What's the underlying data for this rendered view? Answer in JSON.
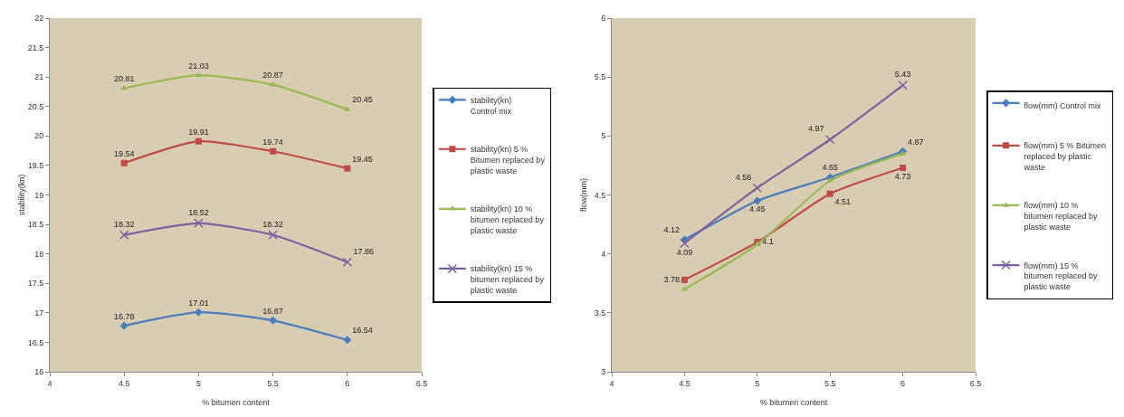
{
  "chart_data": [
    {
      "type": "line",
      "xlabel": "% bitumen content",
      "ylabel": "stability(kn)",
      "x": [
        4.5,
        5,
        5.5,
        6
      ],
      "xlim": [
        4,
        6.5
      ],
      "xticks": [
        4,
        4.5,
        5,
        5.5,
        6,
        6.5
      ],
      "ylim": [
        16,
        22
      ],
      "yticks": [
        16,
        16.5,
        17,
        17.5,
        18,
        18.5,
        19,
        19.5,
        20,
        20.5,
        21,
        21.5,
        22
      ],
      "grid": false,
      "legend": "right",
      "data_labels": true,
      "series": [
        {
          "name": "stability(kn) Control mix",
          "color": "#4a7ebb",
          "marker": "diamond",
          "values": [
            16.78,
            17.01,
            16.87,
            16.54
          ]
        },
        {
          "name": "stability(kn) 5 % Bitumen replaced by plastic waste",
          "color": "#be4b48",
          "marker": "square",
          "values": [
            19.54,
            19.91,
            19.74,
            19.45
          ]
        },
        {
          "name": "stability(kn) 10 % bitumen replaced by plastic waste",
          "color": "#98b954",
          "marker": "triangle",
          "values": [
            20.81,
            21.03,
            20.87,
            20.45
          ]
        },
        {
          "name": "stability(kn) 15 % bitumen replaced by plastic waste",
          "color": "#7d60a0",
          "marker": "cross",
          "values": [
            18.32,
            18.52,
            18.32,
            17.86
          ]
        }
      ]
    },
    {
      "type": "line",
      "xlabel": "% bitumen content",
      "ylabel": "flow(mm)",
      "x": [
        4.5,
        5,
        5.5,
        6
      ],
      "xlim": [
        4,
        6.5
      ],
      "xticks": [
        4,
        4.5,
        5,
        5.5,
        6,
        6.5
      ],
      "ylim": [
        3,
        6
      ],
      "yticks": [
        3,
        3.5,
        4,
        4.5,
        5,
        5.5,
        6
      ],
      "grid": false,
      "legend": "right",
      "series": [
        {
          "name": "flow(mm) Control mix",
          "color": "#4a7ebb",
          "marker": "diamond",
          "values": [
            4.12,
            4.45,
            4.65,
            4.87
          ],
          "value_labels": [
            "4.12",
            "4.45",
            "4.65",
            "4.87"
          ]
        },
        {
          "name": "flow(mm) 5 % Bitumen replaced by plastic waste",
          "color": "#be4b48",
          "marker": "square",
          "values": [
            3.78,
            4.1,
            4.51,
            4.73
          ],
          "value_labels": [
            "3.78",
            "4.1",
            "4.51",
            "4.73"
          ]
        },
        {
          "name": "flow(mm) 10 % bitumen replaced by plastic waste",
          "color": "#98b954",
          "marker": "triangle",
          "values": [
            3.7,
            4.08,
            4.62,
            4.85
          ],
          "value_labels": [
            null,
            null,
            null,
            null
          ]
        },
        {
          "name": "flow(mm) 15 % bitumen replaced by plastic waste",
          "color": "#7d60a0",
          "marker": "cross",
          "values": [
            4.09,
            4.56,
            4.97,
            5.43
          ],
          "value_labels": [
            "4.09",
            "4.56",
            "4.97",
            "5.43"
          ]
        }
      ]
    }
  ]
}
